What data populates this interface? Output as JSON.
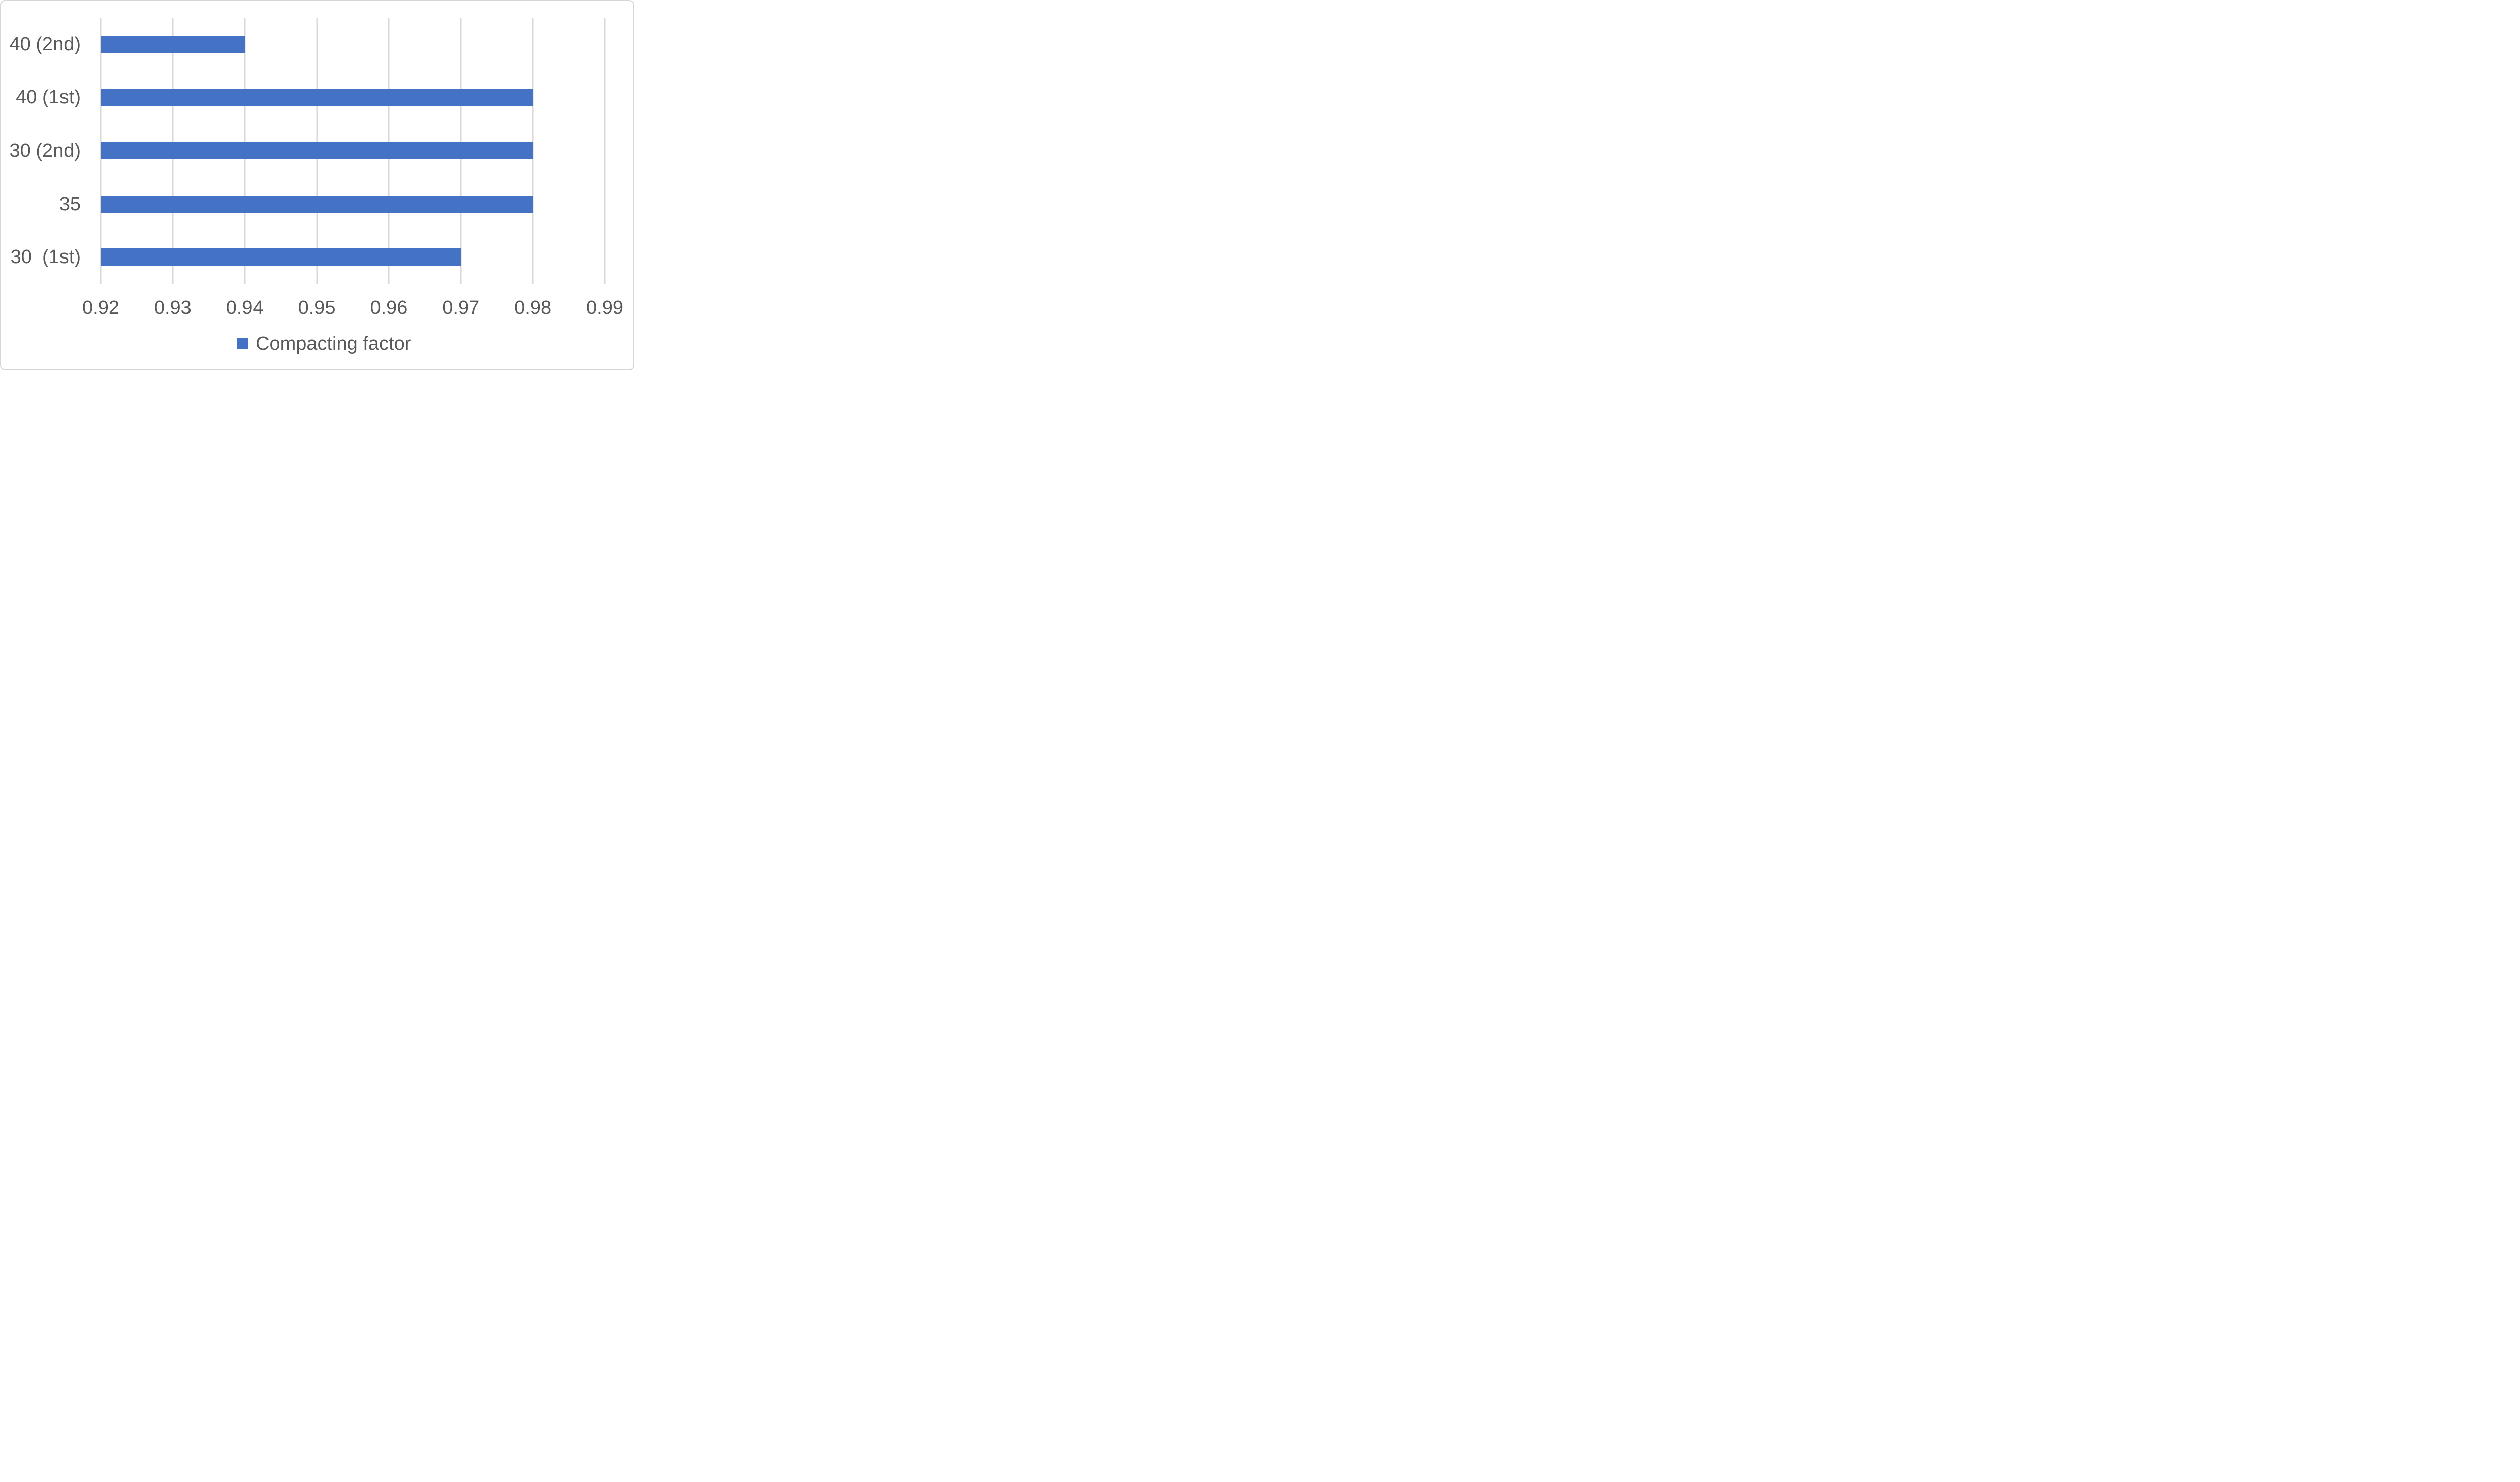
{
  "chart_data": {
    "type": "bar",
    "orientation": "horizontal",
    "title": "",
    "xlabel": "",
    "ylabel": "",
    "categories": [
      "40 (2nd)",
      "40 (1st)",
      "30 (2nd)",
      "35",
      "30  (1st)"
    ],
    "series": [
      {
        "name": "Compacting factor",
        "values": [
          0.94,
          0.98,
          0.98,
          0.98,
          0.97
        ],
        "color": "#4472C4"
      }
    ],
    "xlim": [
      0.92,
      0.99
    ],
    "x_ticks": [
      "0.92",
      "0.93",
      "0.94",
      "0.95",
      "0.96",
      "0.97",
      "0.98",
      "0.99"
    ],
    "grid": true,
    "legend_position": "bottom",
    "colors": {
      "bar": "#4472C4",
      "gridline": "#D9D9D9",
      "axis_text": "#595959",
      "frame_border": "#D6D6D6",
      "background": "#FFFFFF"
    }
  },
  "legend": {
    "label": "Compacting factor",
    "marker_color": "#4472C4"
  }
}
